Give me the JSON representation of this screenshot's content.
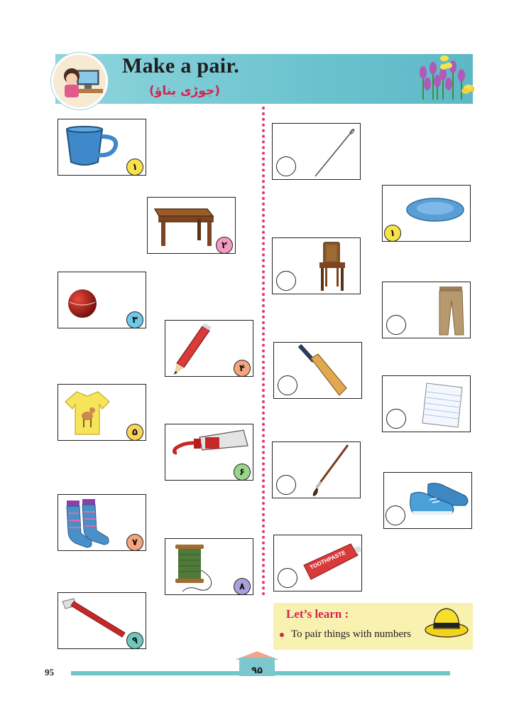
{
  "header": {
    "title": "Make a pair.",
    "subtitle": "(جوڑی بناؤ)"
  },
  "left_items": [
    {
      "name": "cup",
      "number": "۱",
      "badge_color": "#f6e24a"
    },
    {
      "name": "table",
      "number": "۲",
      "badge_color": "#f29ac4"
    },
    {
      "name": "ball",
      "number": "۳",
      "badge_color": "#6fc8e6"
    },
    {
      "name": "pencil",
      "number": "۴",
      "badge_color": "#f4a47e"
    },
    {
      "name": "t-shirt",
      "number": "۵",
      "badge_color": "#f8d55a"
    },
    {
      "name": "paint-tube",
      "number": "۶",
      "badge_color": "#9ad58b"
    },
    {
      "name": "socks",
      "number": "۷",
      "badge_color": "#f4a47e"
    },
    {
      "name": "thread-spool",
      "number": "۸",
      "badge_color": "#a8a2dc"
    },
    {
      "name": "toothbrush",
      "number": "۹",
      "badge_color": "#6fc8bd"
    }
  ],
  "right_items": [
    {
      "name": "needle",
      "number": ""
    },
    {
      "name": "saucer",
      "number": "۱",
      "badge_color": "#f6e24a"
    },
    {
      "name": "chair",
      "number": ""
    },
    {
      "name": "trousers",
      "number": ""
    },
    {
      "name": "bat",
      "number": ""
    },
    {
      "name": "notebook-paper",
      "number": ""
    },
    {
      "name": "paintbrush",
      "number": ""
    },
    {
      "name": "shoes",
      "number": ""
    },
    {
      "name": "toothpaste",
      "number": ""
    }
  ],
  "toothpaste_label": "TOOTHPASTE",
  "learn": {
    "title": "Let’s learn :",
    "item": "To pair things with numbers"
  },
  "footer": {
    "page_number": "95",
    "page_number_urdu": "۹۵"
  }
}
